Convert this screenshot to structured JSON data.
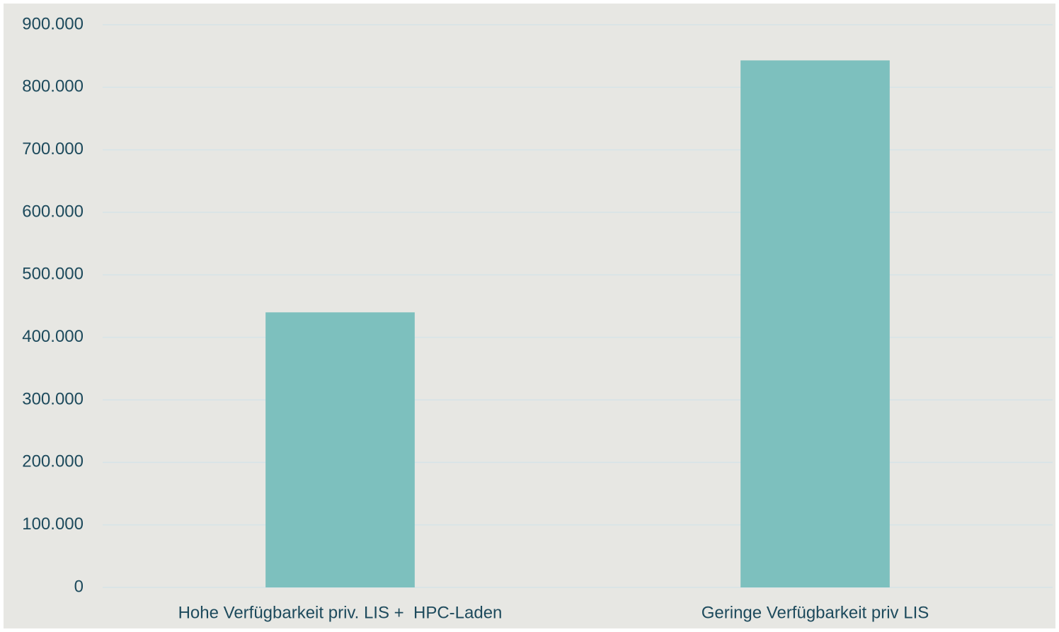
{
  "chart_data": {
    "type": "bar",
    "categories": [
      "Hohe Verfügbarkeit priv. LIS +  HPC-Laden",
      "Geringe Verfügbarkeit priv LIS"
    ],
    "values": [
      440000,
      843000
    ],
    "color": "#7dc0be",
    "ylim": [
      0,
      900000
    ],
    "yticks": [
      0,
      {
        "value": 100000,
        "label": "100.000"
      },
      {
        "value": 200000,
        "label": "200.000"
      },
      {
        "value": 300000,
        "label": "300.000"
      },
      {
        "value": 400000,
        "label": "400.000"
      },
      {
        "value": 500000,
        "label": "500.000"
      },
      {
        "value": 600000,
        "label": "600.000"
      },
      {
        "value": 700000,
        "label": "700.000"
      },
      {
        "value": 800000,
        "label": "800.000"
      },
      {
        "value": 900000,
        "label": "900.000"
      }
    ],
    "grid": true
  }
}
